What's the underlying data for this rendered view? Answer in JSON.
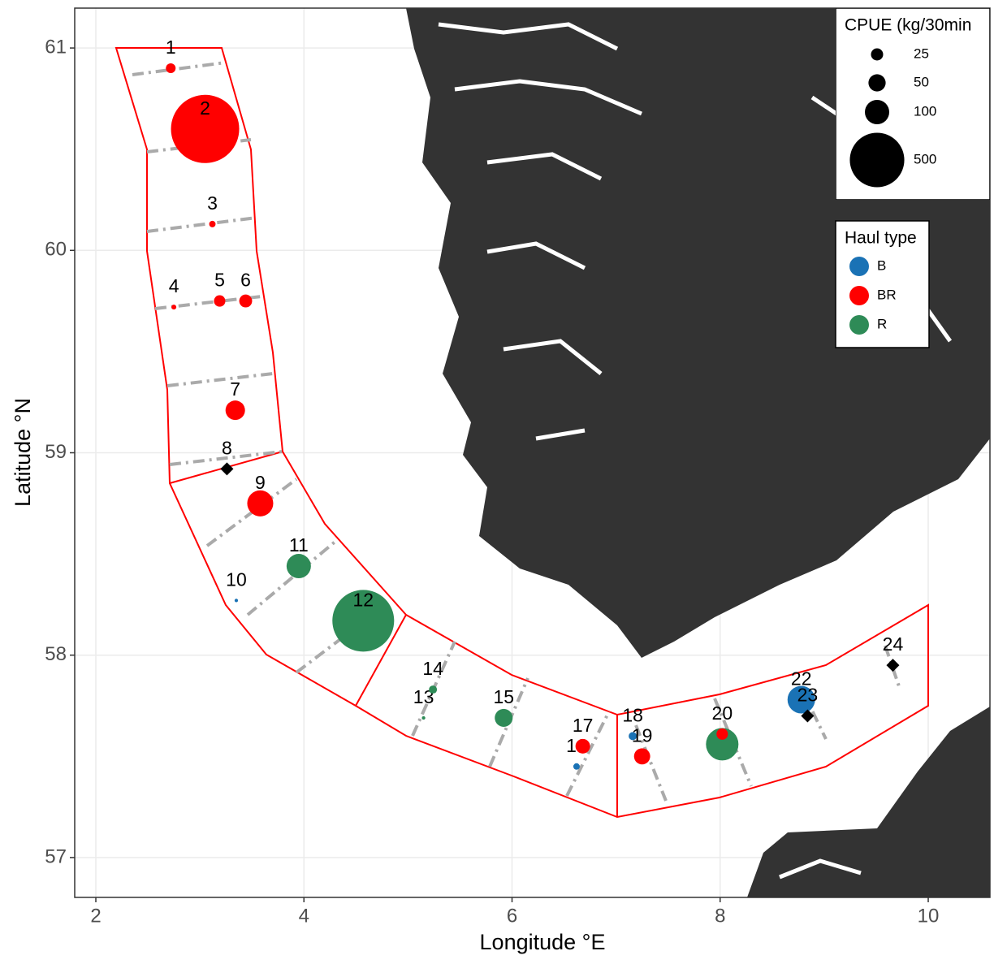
{
  "chart_data": {
    "type": "scatter",
    "x_label": "Longitude °E",
    "y_label": "Latitude °N",
    "xlim": [
      1.797,
      10.593
    ],
    "ylim": [
      56.803,
      61.197
    ],
    "xticks": [
      2,
      4,
      6,
      8,
      10
    ],
    "yticks": [
      57,
      58,
      59,
      60,
      61
    ],
    "grid": true,
    "size_legend_title": "CPUE (kg/30min",
    "size_legend": [
      25,
      50,
      100,
      500
    ],
    "color_legend_title": "Haul type",
    "haul_types": [
      {
        "name": "B",
        "color": "#1a72b5"
      },
      {
        "name": "BR",
        "color": "#ff0000"
      },
      {
        "name": "R",
        "color": "#2e8b57"
      }
    ],
    "points": [
      {
        "label": 1,
        "lon": 2.72,
        "lat": 60.9,
        "cpue": 16,
        "haul": "BR"
      },
      {
        "label": 2,
        "lon": 3.05,
        "lat": 60.6,
        "cpue": 784,
        "haul": "BR"
      },
      {
        "label": 3,
        "lon": 3.12,
        "lat": 60.13,
        "cpue": 7,
        "haul": "BR"
      },
      {
        "label": 4,
        "lon": 2.75,
        "lat": 59.72,
        "cpue": 4,
        "haul": "BR"
      },
      {
        "label": 5,
        "lon": 3.19,
        "lat": 59.75,
        "cpue": 22,
        "haul": "BR"
      },
      {
        "label": 6,
        "lon": 3.44,
        "lat": 59.75,
        "cpue": 28,
        "haul": "BR"
      },
      {
        "label": 7,
        "lon": 3.34,
        "lat": 59.21,
        "cpue": 64,
        "haul": "BR"
      },
      {
        "label": 8,
        "lon": 3.26,
        "lat": 58.92,
        "cpue": 0,
        "haul": null
      },
      {
        "label": 9,
        "lon": 3.58,
        "lat": 58.75,
        "cpue": 114,
        "haul": "BR"
      },
      {
        "label": 10,
        "lon": 3.35,
        "lat": 58.27,
        "cpue": 2,
        "haul": "B"
      },
      {
        "label": 11,
        "lon": 3.95,
        "lat": 58.44,
        "cpue": 100,
        "haul": "R"
      },
      {
        "label": 12,
        "lon": 4.57,
        "lat": 58.17,
        "cpue": 642,
        "haul": "R"
      },
      {
        "label": 13,
        "lon": 5.15,
        "lat": 57.69,
        "cpue": 2,
        "haul": "R"
      },
      {
        "label": 14,
        "lon": 5.24,
        "lat": 57.83,
        "cpue": 11,
        "haul": "R"
      },
      {
        "label": 15,
        "lon": 5.92,
        "lat": 57.69,
        "cpue": 54,
        "haul": "R"
      },
      {
        "label": 16,
        "lon": 6.62,
        "lat": 57.45,
        "cpue": 7,
        "haul": "B"
      },
      {
        "label": 17,
        "lon": 6.68,
        "lat": 57.55,
        "cpue": 36,
        "haul": "BR"
      },
      {
        "label": 18,
        "lon": 7.16,
        "lat": 57.6,
        "cpue": 11,
        "haul": "B"
      },
      {
        "label": 19,
        "lon": 7.25,
        "lat": 57.5,
        "cpue": 44,
        "haul": "BR"
      },
      {
        "label": null,
        "lon": 8.02,
        "lat": 57.56,
        "cpue": 178,
        "haul": "R"
      },
      {
        "label": 20,
        "lon": 8.02,
        "lat": 57.61,
        "cpue": 22,
        "haul": "BR"
      },
      {
        "label": 22,
        "lon": 8.78,
        "lat": 57.78,
        "cpue": 128,
        "haul": "B"
      },
      {
        "label": 23,
        "lon": 8.84,
        "lat": 57.7,
        "cpue": 0,
        "haul": null
      },
      {
        "label": 24,
        "lon": 9.66,
        "lat": 57.95,
        "cpue": 0,
        "haul": null
      }
    ]
  }
}
